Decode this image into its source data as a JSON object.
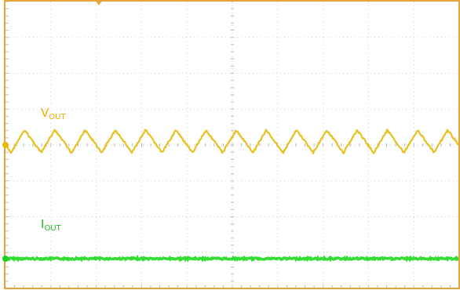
{
  "traces": [
    {
      "label": "V",
      "subscript": "OUT"
    },
    {
      "label": "I",
      "subscript": "OUT"
    }
  ]
}
